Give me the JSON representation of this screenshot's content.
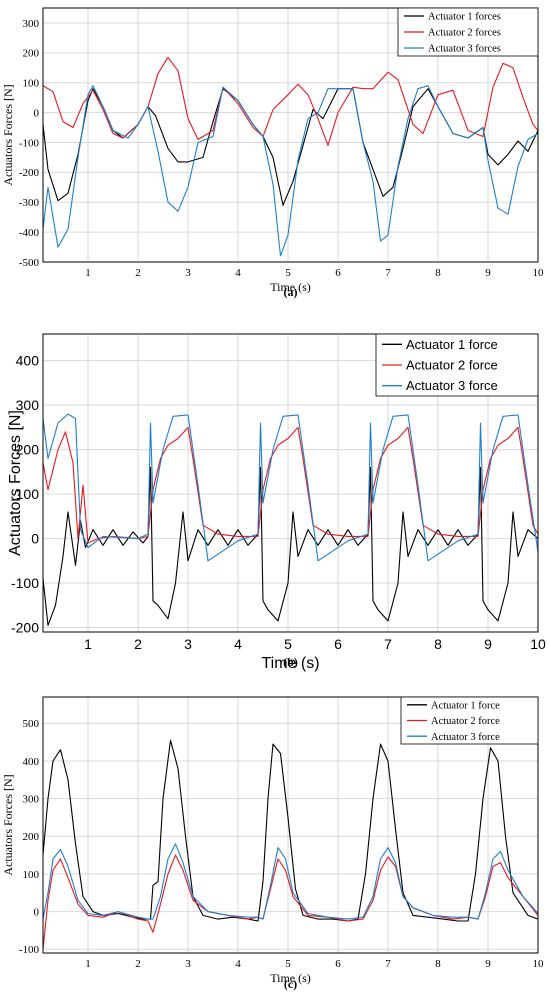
{
  "colors": {
    "actuator1": "#000000",
    "actuator2": "#e8191d",
    "actuator3": "#1f7fd0",
    "grid": "#d9d9d9"
  },
  "panels": [
    {
      "caption": "(a)",
      "xlabel": "Time (s)",
      "ylabel": "Actuators Forces [N]",
      "serif": true,
      "legend": [
        "Actuator 1 forces",
        "Actuator 2 forces",
        "Actuator 3 forces"
      ],
      "xticks": [
        "1",
        "2",
        "3",
        "4",
        "5",
        "6",
        "7",
        "8",
        "9",
        "10"
      ],
      "yticks": [
        "-500",
        "-400",
        "-300",
        "-200",
        "-100",
        "0",
        "100",
        "200",
        "300"
      ]
    },
    {
      "caption": "(b)",
      "xlabel": "Time (s)",
      "ylabel": "Actuators Forces [N]",
      "serif": false,
      "legend": [
        "Actuator 1 force",
        "Actuator 2 force",
        "Actuator 3 force"
      ],
      "xticks": [
        "1",
        "2",
        "3",
        "4",
        "5",
        "6",
        "7",
        "8",
        "9",
        "10"
      ],
      "yticks": [
        "-200",
        "-100",
        "0",
        "100",
        "200",
        "300",
        "400"
      ]
    },
    {
      "caption": "(c)",
      "xlabel": "Time (s)",
      "ylabel": "Actuators Forces [N]",
      "serif": true,
      "legend": [
        "Actuator 1 force",
        "Actuator 2 force",
        "Actuator 3 force"
      ],
      "xticks": [
        "1",
        "2",
        "3",
        "4",
        "5",
        "6",
        "7",
        "8",
        "9",
        "10"
      ],
      "yticks": [
        "-100",
        "0",
        "100",
        "200",
        "300",
        "400",
        "500"
      ]
    }
  ],
  "chart_data": [
    {
      "type": "line",
      "xlabel": "Time (s)",
      "ylabel": "Actuators Forces [N]",
      "xlim": [
        0.1,
        10
      ],
      "ylim": [
        -500,
        350
      ],
      "grid": true,
      "legend_position": "top-right",
      "series": [
        {
          "name": "Actuator 1 forces",
          "x": [
            0.1,
            0.2,
            0.4,
            0.6,
            0.8,
            1.0,
            1.1,
            1.3,
            1.5,
            1.7,
            2.0,
            2.2,
            2.35,
            2.6,
            2.8,
            3.0,
            3.3,
            3.5,
            3.7,
            4.0,
            4.3,
            4.5,
            4.7,
            4.9,
            5.1,
            5.3,
            5.5,
            5.7,
            6.0,
            6.3,
            6.5,
            6.7,
            6.9,
            7.1,
            7.3,
            7.5,
            7.8,
            8.0,
            8.3,
            8.6,
            8.9,
            9.0,
            9.2,
            9.4,
            9.6,
            9.8,
            10.0
          ],
          "y": [
            -40,
            -190,
            -295,
            -270,
            -140,
            40,
            80,
            20,
            -60,
            -85,
            -40,
            20,
            -10,
            -120,
            -165,
            -165,
            -150,
            -30,
            80,
            40,
            -40,
            -80,
            -150,
            -310,
            -230,
            -110,
            10,
            -20,
            80,
            80,
            -100,
            -190,
            -280,
            -250,
            -120,
            20,
            80,
            20,
            -70,
            -85,
            -50,
            -140,
            -175,
            -140,
            -95,
            -130,
            -60
          ]
        },
        {
          "name": "Actuator 2 forces",
          "x": [
            0.1,
            0.3,
            0.5,
            0.7,
            0.9,
            1.1,
            1.3,
            1.5,
            1.7,
            2.0,
            2.2,
            2.4,
            2.6,
            2.8,
            3.0,
            3.2,
            3.5,
            3.7,
            4.0,
            4.3,
            4.5,
            4.7,
            5.0,
            5.2,
            5.4,
            5.6,
            5.8,
            6.0,
            6.3,
            6.5,
            6.7,
            7.0,
            7.2,
            7.5,
            7.7,
            8.0,
            8.3,
            8.6,
            8.9,
            9.1,
            9.3,
            9.5,
            9.7,
            9.9,
            10.0
          ],
          "y": [
            90,
            70,
            -30,
            -50,
            30,
            75,
            10,
            -70,
            -85,
            -40,
            20,
            130,
            185,
            140,
            -20,
            -90,
            -60,
            85,
            30,
            -50,
            -80,
            10,
            60,
            95,
            60,
            -20,
            -110,
            0,
            85,
            80,
            80,
            135,
            110,
            -40,
            -70,
            60,
            75,
            -60,
            -80,
            85,
            165,
            150,
            50,
            -40,
            -60
          ]
        },
        {
          "name": "Actuator 3 forces",
          "x": [
            0.1,
            0.2,
            0.4,
            0.6,
            0.8,
            1.0,
            1.1,
            1.3,
            1.5,
            1.8,
            2.0,
            2.2,
            2.4,
            2.6,
            2.8,
            3.0,
            3.2,
            3.5,
            3.7,
            4.0,
            4.3,
            4.5,
            4.7,
            4.85,
            5.0,
            5.2,
            5.4,
            5.6,
            5.8,
            6.0,
            6.3,
            6.5,
            6.7,
            6.85,
            7.0,
            7.2,
            7.4,
            7.6,
            7.8,
            8.0,
            8.3,
            8.6,
            8.9,
            9.0,
            9.2,
            9.4,
            9.6,
            9.8,
            10.0
          ],
          "y": [
            -390,
            -250,
            -450,
            -390,
            -150,
            60,
            90,
            20,
            -60,
            -85,
            -40,
            20,
            -130,
            -300,
            -330,
            -250,
            -100,
            -80,
            85,
            40,
            -40,
            -80,
            -240,
            -480,
            -410,
            -160,
            -20,
            0,
            80,
            80,
            80,
            -100,
            -230,
            -430,
            -410,
            -180,
            -20,
            80,
            90,
            20,
            -70,
            -85,
            -50,
            -160,
            -320,
            -340,
            -180,
            -90,
            -70
          ]
        }
      ]
    },
    {
      "type": "line",
      "xlabel": "Time (s)",
      "ylabel": "Actuators Forces [N]",
      "xlim": [
        0.1,
        10
      ],
      "ylim": [
        -210,
        460
      ],
      "grid": true,
      "legend_position": "top-right",
      "series": [
        {
          "name": "Actuator 1 force",
          "x": [
            0.1,
            0.2,
            0.35,
            0.5,
            0.6,
            0.75,
            0.85,
            0.95,
            1.1,
            1.3,
            1.5,
            1.7,
            1.9,
            2.1,
            2.2,
            2.25,
            2.3,
            2.4,
            2.6,
            2.75,
            2.9,
            3.0,
            3.2,
            3.4,
            3.6,
            3.8,
            4.0,
            4.2,
            4.4,
            4.45,
            4.5,
            4.6,
            4.8,
            5.0,
            5.1,
            5.2,
            5.4,
            5.6,
            5.8,
            6.0,
            6.2,
            6.4,
            6.6,
            6.65,
            6.7,
            6.8,
            7.0,
            7.2,
            7.3,
            7.4,
            7.6,
            7.8,
            8.0,
            8.2,
            8.4,
            8.6,
            8.8,
            8.85,
            8.9,
            9.0,
            9.2,
            9.4,
            9.5,
            9.6,
            9.8,
            10.0
          ],
          "y": [
            -90,
            -195,
            -150,
            -40,
            60,
            -60,
            40,
            -20,
            20,
            -15,
            20,
            -15,
            15,
            -10,
            5,
            160,
            -140,
            -150,
            -180,
            -100,
            60,
            -50,
            20,
            -15,
            20,
            -15,
            20,
            -15,
            10,
            160,
            -140,
            -160,
            -185,
            -100,
            60,
            -40,
            20,
            -15,
            20,
            -15,
            20,
            -15,
            10,
            160,
            -140,
            -160,
            -185,
            -100,
            60,
            -40,
            20,
            -15,
            20,
            -15,
            20,
            -15,
            10,
            160,
            -140,
            -160,
            -185,
            -100,
            60,
            -40,
            20,
            0
          ]
        },
        {
          "name": "Actuator 2 force",
          "x": [
            0.1,
            0.2,
            0.4,
            0.55,
            0.7,
            0.8,
            0.9,
            1.0,
            1.2,
            1.5,
            2.0,
            2.2,
            2.3,
            2.45,
            2.6,
            2.8,
            3.0,
            3.1,
            3.3,
            3.6,
            4.0,
            4.4,
            4.5,
            4.65,
            4.8,
            5.0,
            5.2,
            5.3,
            5.5,
            5.8,
            6.2,
            6.6,
            6.7,
            6.85,
            7.0,
            7.2,
            7.4,
            7.5,
            7.7,
            8.0,
            8.4,
            8.8,
            8.9,
            9.05,
            9.2,
            9.4,
            9.6,
            9.7,
            9.9,
            10.0
          ],
          "y": [
            170,
            110,
            200,
            240,
            170,
            0,
            120,
            -10,
            0,
            5,
            0,
            5,
            110,
            180,
            210,
            225,
            250,
            180,
            30,
            10,
            5,
            5,
            110,
            180,
            210,
            225,
            250,
            180,
            30,
            10,
            5,
            5,
            110,
            180,
            210,
            225,
            250,
            180,
            30,
            10,
            5,
            5,
            110,
            180,
            210,
            225,
            250,
            180,
            30,
            10
          ]
        },
        {
          "name": "Actuator 3 force",
          "x": [
            0.1,
            0.2,
            0.4,
            0.6,
            0.75,
            0.85,
            1.0,
            1.3,
            2.0,
            2.2,
            2.25,
            2.3,
            2.5,
            2.7,
            3.0,
            3.2,
            3.4,
            4.0,
            4.4,
            4.45,
            4.5,
            4.7,
            4.9,
            5.2,
            5.4,
            5.6,
            6.2,
            6.6,
            6.65,
            6.7,
            6.9,
            7.1,
            7.4,
            7.6,
            7.8,
            8.4,
            8.8,
            8.85,
            8.9,
            9.1,
            9.3,
            9.6,
            9.8,
            10.0
          ],
          "y": [
            270,
            180,
            260,
            280,
            270,
            20,
            -20,
            5,
            0,
            10,
            260,
            80,
            200,
            275,
            278,
            120,
            -50,
            -5,
            10,
            260,
            80,
            200,
            275,
            278,
            120,
            -50,
            -5,
            10,
            260,
            80,
            200,
            275,
            278,
            120,
            -50,
            -5,
            10,
            260,
            80,
            200,
            275,
            278,
            120,
            -30
          ]
        }
      ]
    },
    {
      "type": "line",
      "xlabel": "Time (s)",
      "ylabel": "Actuators Forces [N]",
      "xlim": [
        0.1,
        10
      ],
      "ylim": [
        -110,
        570
      ],
      "grid": true,
      "legend_position": "top-right",
      "series": [
        {
          "name": "Actuator 1 force",
          "x": [
            0.1,
            0.2,
            0.3,
            0.45,
            0.6,
            0.75,
            0.9,
            1.1,
            1.3,
            1.6,
            1.9,
            2.1,
            2.25,
            2.3,
            2.4,
            2.5,
            2.65,
            2.8,
            2.95,
            3.1,
            3.3,
            3.6,
            3.9,
            4.2,
            4.4,
            4.5,
            4.6,
            4.7,
            4.85,
            5.0,
            5.15,
            5.3,
            5.6,
            5.9,
            6.2,
            6.4,
            6.55,
            6.7,
            6.85,
            7.0,
            7.15,
            7.3,
            7.5,
            7.8,
            8.1,
            8.4,
            8.6,
            8.75,
            8.9,
            9.05,
            9.2,
            9.35,
            9.5,
            9.8,
            10.0
          ],
          "y": [
            150,
            300,
            400,
            430,
            350,
            180,
            40,
            0,
            -10,
            -5,
            -15,
            -20,
            -20,
            70,
            80,
            300,
            455,
            380,
            200,
            40,
            -10,
            -20,
            -15,
            -20,
            -25,
            80,
            300,
            445,
            420,
            250,
            60,
            -10,
            -20,
            -20,
            -25,
            -20,
            100,
            300,
            445,
            400,
            220,
            50,
            -10,
            -15,
            -20,
            -25,
            -25,
            100,
            300,
            435,
            400,
            200,
            50,
            -10,
            -20
          ]
        },
        {
          "name": "Actuator 2 force",
          "x": [
            0.1,
            0.2,
            0.3,
            0.45,
            0.6,
            0.8,
            1.0,
            1.3,
            1.6,
            2.0,
            2.2,
            2.3,
            2.45,
            2.6,
            2.75,
            2.9,
            3.1,
            3.4,
            3.8,
            4.2,
            4.4,
            4.5,
            4.65,
            4.8,
            4.95,
            5.1,
            5.4,
            5.8,
            6.2,
            6.5,
            6.7,
            6.85,
            7.0,
            7.15,
            7.3,
            7.5,
            7.9,
            8.3,
            8.6,
            8.8,
            8.95,
            9.1,
            9.25,
            9.4,
            9.7,
            10.0
          ],
          "y": [
            -100,
            30,
            110,
            140,
            90,
            20,
            -10,
            -15,
            0,
            -20,
            -25,
            -55,
            20,
            100,
            150,
            110,
            30,
            0,
            -10,
            -20,
            -15,
            -20,
            60,
            140,
            110,
            40,
            -10,
            -15,
            -25,
            -20,
            30,
            110,
            145,
            120,
            40,
            10,
            -10,
            -20,
            -15,
            -20,
            40,
            120,
            130,
            90,
            40,
            -10
          ]
        },
        {
          "name": "Actuator 3 force",
          "x": [
            0.1,
            0.2,
            0.3,
            0.45,
            0.6,
            0.8,
            1.0,
            1.3,
            1.6,
            2.0,
            2.2,
            2.3,
            2.45,
            2.6,
            2.75,
            2.9,
            3.1,
            3.4,
            3.8,
            4.2,
            4.4,
            4.5,
            4.65,
            4.8,
            4.95,
            5.1,
            5.4,
            5.8,
            6.2,
            6.5,
            6.7,
            6.85,
            7.0,
            7.15,
            7.3,
            7.5,
            7.9,
            8.3,
            8.6,
            8.8,
            8.95,
            9.1,
            9.25,
            9.4,
            9.7,
            10.0
          ],
          "y": [
            -20,
            50,
            140,
            165,
            120,
            30,
            -5,
            -10,
            0,
            -15,
            -20,
            -20,
            40,
            140,
            180,
            130,
            40,
            0,
            -10,
            -15,
            -15,
            -20,
            70,
            170,
            140,
            50,
            -5,
            -15,
            -20,
            -15,
            40,
            140,
            170,
            130,
            40,
            10,
            -10,
            -15,
            -15,
            -20,
            50,
            140,
            160,
            110,
            40,
            -5
          ]
        }
      ]
    }
  ]
}
